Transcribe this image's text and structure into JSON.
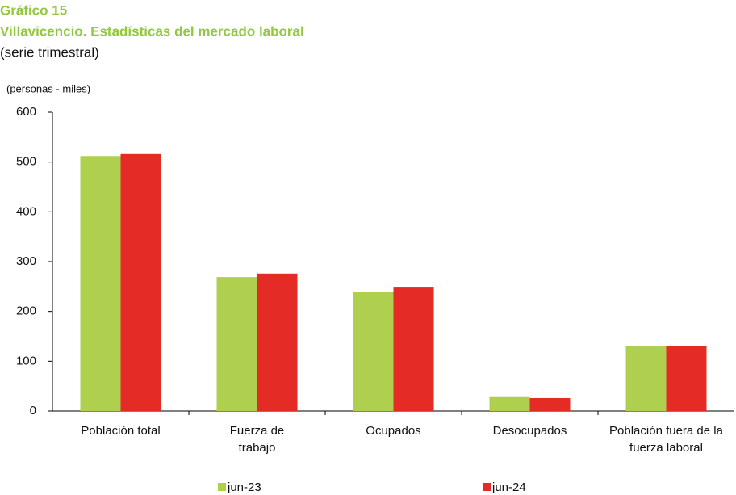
{
  "chart_data": {
    "type": "bar",
    "label": "Gráfico 15",
    "title": "Villavicencio. Estadísticas del mercado laboral",
    "subtitle": "(serie trimestral)",
    "y_label": "(personas - miles)",
    "categories": [
      "Población total",
      "Fuerza de trabajo",
      "Ocupados",
      "Desocupados",
      "Población fuera de la fuerza laboral"
    ],
    "series": [
      {
        "name": "jun-23",
        "color": "#afcf4f",
        "values": [
          512,
          269,
          240,
          28,
          131
        ]
      },
      {
        "name": "jun-24",
        "color": "#e42b26",
        "values": [
          516,
          276,
          248,
          26,
          130
        ]
      }
    ],
    "ylim": [
      0,
      600
    ],
    "yticks": [
      0,
      100,
      200,
      300,
      400,
      500,
      600
    ],
    "grid": false
  }
}
